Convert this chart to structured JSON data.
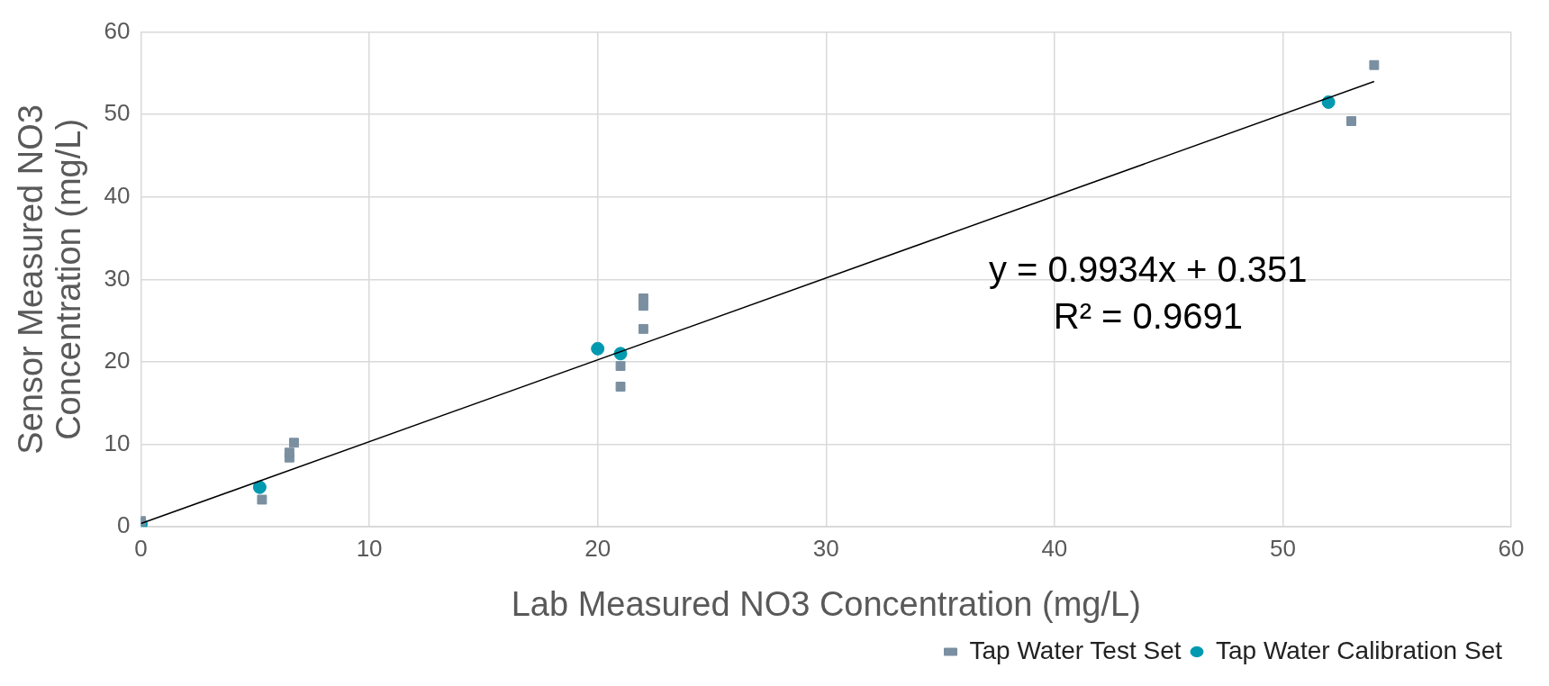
{
  "chart_data": {
    "type": "scatter",
    "xlabel": "Lab Measured NO3 Concentration (mg/L)",
    "ylabel": "Sensor Measured NO3 Concentration (mg/L)",
    "series": [
      {
        "name": "Tap Water Test Set",
        "color": "#7a8fa0",
        "marker": "square",
        "x": [
          0,
          5.3,
          6.5,
          6.5,
          6.7,
          21,
          21,
          22,
          22,
          22,
          53,
          54
        ],
        "values": [
          0.7,
          3.3,
          8.4,
          9,
          10.2,
          17,
          19.5,
          24,
          26.8,
          27.7,
          49.2,
          56
        ]
      },
      {
        "name": "Tap Water Calibration Set",
        "color": "#0099b0",
        "marker": "circle",
        "x": [
          0,
          5.2,
          20,
          21,
          52
        ],
        "values": [
          0.3,
          4.8,
          21.6,
          21,
          51.5
        ]
      },
      {
        "type": "line",
        "color": "#000000",
        "marker": "none",
        "x": [
          0,
          54
        ],
        "values": [
          0.4,
          54
        ]
      }
    ],
    "xlim": [
      0,
      60
    ],
    "ylim": [
      0,
      60
    ],
    "xticks": [
      0,
      10,
      20,
      30,
      40,
      50,
      60
    ],
    "yticks": [
      0,
      10,
      20,
      30,
      40,
      50,
      60
    ],
    "grid": true,
    "legend": "bottom right",
    "annotations": [
      "y = 0.9934x + 0.351",
      "R² = 0.9691"
    ]
  }
}
